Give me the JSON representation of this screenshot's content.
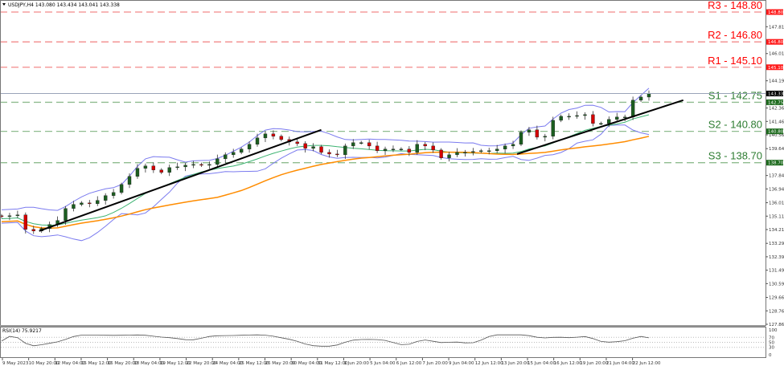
{
  "header": {
    "title": "USDJPY,H4 143.080 143.434 143.041 143.338"
  },
  "rsi_label": "RSI(14) 75.9217",
  "colors": {
    "resistance": "#ff0000",
    "support": "#2e7d32",
    "bull": "#1b5e20",
    "bear": "#d50000",
    "bands": "#7b7bef",
    "ma_fast": "#3cb371",
    "ma_slow": "#ff8c00",
    "trendline": "#000000"
  },
  "chart_data": {
    "type": "candlestick",
    "symbol": "USDJPY",
    "timeframe": "H4",
    "ylim": [
      127.865,
      148.8
    ],
    "y_ticks": [
      "147.815",
      "146.015",
      "144.190",
      "142.365",
      "141.465",
      "140.565",
      "139.640",
      "137.840",
      "136.940",
      "136.015",
      "135.115",
      "134.215",
      "133.290",
      "132.390",
      "131.490",
      "130.590",
      "129.665",
      "128.765",
      "127.865"
    ],
    "x_ticks": [
      "9 May 2023",
      "10 May 20:00",
      "12 May 04:00",
      "15 May 12:00",
      "16 May 20:00",
      "18 May 04:00",
      "19 May 12:00",
      "22 May 20:00",
      "24 May 04:00",
      "25 May 12:00",
      "26 May 20:00",
      "30 May 04:00",
      "31 May 12:00",
      "1 Jun 20:00",
      "5 Jun 04:00",
      "6 Jun 12:00",
      "7 Jun 20:00",
      "9 Jun 04:00",
      "12 Jun 12:00",
      "13 Jun 20:00",
      "15 Jun 04:00",
      "16 Jun 12:00",
      "19 Jun 20:00",
      "21 Jun 04:00",
      "22 Jun 12:00"
    ],
    "current_price": "143.338",
    "closes": [
      135.09,
      135.14,
      135.2,
      134.23,
      134.12,
      134.28,
      134.55,
      134.82,
      135.63,
      135.9,
      136.0,
      135.95,
      136.17,
      136.49,
      136.7,
      137.24,
      137.78,
      138.32,
      138.48,
      138.21,
      138.05,
      138.37,
      138.42,
      138.53,
      138.58,
      138.53,
      138.58,
      138.96,
      139.23,
      139.39,
      139.61,
      139.93,
      140.36,
      140.63,
      140.47,
      140.25,
      140.09,
      139.98,
      139.66,
      139.77,
      139.39,
      139.28,
      139.23,
      139.82,
      140.04,
      140.04,
      139.82,
      139.5,
      139.61,
      139.61,
      139.61,
      139.39,
      139.93,
      139.82,
      139.55,
      139.02,
      139.23,
      139.39,
      139.39,
      139.45,
      139.5,
      139.5,
      139.61,
      139.82,
      139.93,
      140.74,
      140.9,
      140.41,
      140.47,
      141.54,
      141.81,
      141.81,
      141.86,
      141.92,
      141.33,
      141.33,
      141.6,
      141.76,
      141.76,
      142.89,
      143.1,
      143.34
    ],
    "levels": [
      {
        "label": "R3 - 148.80",
        "tag": "148.800",
        "value": 148.8,
        "kind": "resistance"
      },
      {
        "label": "R2 - 146.80",
        "tag": "146.800",
        "value": 146.8,
        "kind": "resistance"
      },
      {
        "label": "R1 - 145.10",
        "tag": "145.100",
        "value": 145.1,
        "kind": "resistance"
      },
      {
        "label": "S1 - 142.75",
        "tag": "142.750",
        "value": 142.75,
        "kind": "support"
      },
      {
        "label": "S2 - 140.80",
        "tag": "140.800",
        "value": 140.8,
        "kind": "support"
      },
      {
        "label": "S3 - 138.70",
        "tag": "138.700",
        "value": 138.7,
        "kind": "support"
      }
    ],
    "trendlines": [
      {
        "from": [
          4.7,
          134.12
        ],
        "to": [
          40,
          140.9
        ]
      },
      {
        "from": [
          64.5,
          139.28
        ],
        "to": [
          85.3,
          142.89
        ]
      }
    ],
    "indicators": [
      "Bollinger Bands",
      "Moving Average (fast)",
      "Moving Average (slow)",
      "RSI(14)"
    ],
    "rsi": {
      "value": 75.9217,
      "ticks": [
        "100",
        "70",
        "50",
        "30",
        "0"
      ],
      "ylim": [
        0,
        100
      ]
    }
  }
}
